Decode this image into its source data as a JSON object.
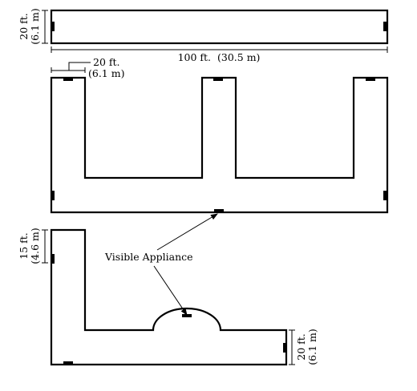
{
  "dimensions": {
    "top_width_ft": "100 ft.",
    "top_width_m": "(30.5 m)",
    "top_height_ft": "20 ft.",
    "top_height_m": "(6.1 m)",
    "corridor_width_ft": "20 ft.",
    "corridor_width_m": "(6.1 m)",
    "bottom_left_ft": "15 ft.",
    "bottom_left_m": "(4.6 m)",
    "bottom_right_ft": "20 ft.",
    "bottom_right_m": "(6.1 m)"
  },
  "callout": {
    "label": "Visible Appliance"
  }
}
